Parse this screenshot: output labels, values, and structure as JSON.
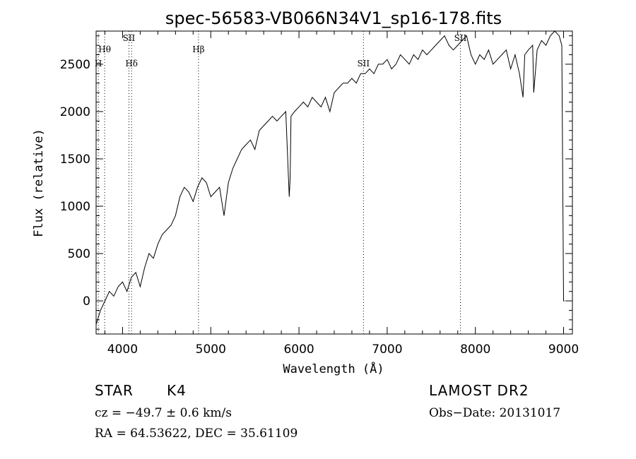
{
  "chart_data": {
    "type": "line",
    "title": "spec-56583-VB066N34V1_sp16-178.fits",
    "xlabel": "Wavelength (Å)",
    "ylabel": "Flux (relative)",
    "xlim": [
      3700,
      9100
    ],
    "ylim": [
      -350,
      2850
    ],
    "xticks": [
      4000,
      5000,
      6000,
      7000,
      8000,
      9000
    ],
    "yticks": [
      0,
      500,
      1000,
      1500,
      2000,
      2500
    ],
    "grid": false,
    "series": [
      {
        "x": [
          3700,
          3750,
          3800,
          3850,
          3900,
          3950,
          4000,
          4050,
          4100,
          4150,
          4200,
          4250,
          4300,
          4350,
          4400,
          4450,
          4500,
          4550,
          4600,
          4650,
          4700,
          4750,
          4800,
          4850,
          4900,
          4950,
          5000,
          5050,
          5100,
          5150,
          5200,
          5250,
          5300,
          5350,
          5400,
          5450,
          5500,
          5550,
          5600,
          5650,
          5700,
          5750,
          5800,
          5850,
          5890,
          5900,
          5910,
          5950,
          6000,
          6050,
          6100,
          6150,
          6200,
          6250,
          6300,
          6350,
          6400,
          6450,
          6500,
          6550,
          6600,
          6650,
          6700,
          6750,
          6800,
          6850,
          6900,
          6950,
          7000,
          7050,
          7100,
          7150,
          7200,
          7250,
          7300,
          7350,
          7400,
          7450,
          7500,
          7550,
          7600,
          7650,
          7700,
          7750,
          7800,
          7850,
          7900,
          7950,
          8000,
          8050,
          8100,
          8150,
          8200,
          8250,
          8300,
          8350,
          8400,
          8450,
          8500,
          8540,
          8560,
          8600,
          8650,
          8662,
          8700,
          8750,
          8800,
          8850,
          8900,
          8950,
          8980,
          9000,
          9010
        ],
        "y": [
          -250,
          -100,
          0,
          100,
          50,
          150,
          200,
          100,
          250,
          300,
          150,
          350,
          500,
          450,
          600,
          700,
          750,
          800,
          900,
          1100,
          1200,
          1150,
          1050,
          1200,
          1300,
          1250,
          1100,
          1150,
          1200,
          900,
          1250,
          1400,
          1500,
          1600,
          1650,
          1700,
          1600,
          1800,
          1850,
          1900,
          1950,
          1900,
          1950,
          2000,
          1100,
          1300,
          1950,
          2000,
          2050,
          2100,
          2050,
          2150,
          2100,
          2050,
          2150,
          2000,
          2200,
          2250,
          2300,
          2300,
          2350,
          2300,
          2400,
          2400,
          2450,
          2400,
          2500,
          2500,
          2550,
          2450,
          2500,
          2600,
          2550,
          2500,
          2600,
          2550,
          2650,
          2600,
          2650,
          2700,
          2750,
          2800,
          2700,
          2650,
          2700,
          2750,
          2800,
          2600,
          2500,
          2600,
          2550,
          2650,
          2500,
          2550,
          2600,
          2650,
          2450,
          2600,
          2400,
          2150,
          2600,
          2650,
          2700,
          2200,
          2650,
          2750,
          2700,
          2800,
          2850,
          2800,
          2700,
          0,
          0
        ]
      }
    ],
    "line_labels": [
      {
        "label": "Hθ",
        "x": 3797
      },
      {
        "label": "H",
        "x": 3725
      },
      {
        "label": "SII",
        "x": 4072
      },
      {
        "label": "Hδ",
        "x": 4102
      },
      {
        "label": "Hβ",
        "x": 4861
      },
      {
        "label": "SII",
        "x": 6731
      },
      {
        "label": "SII",
        "x": 7830
      }
    ]
  },
  "info": {
    "object_class": "STAR",
    "subclass": "K4",
    "survey": "LAMOST DR2",
    "cz": "cz = −49.7 ± 0.6 km/s",
    "obs_date": "Obs−Date: 20131017",
    "coords": "RA =  64.53622, DEC =  35.61109"
  }
}
